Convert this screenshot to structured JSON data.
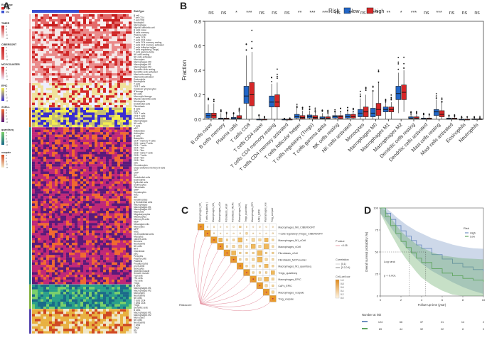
{
  "panels": {
    "A": "A",
    "B": "B",
    "C": "C",
    "D": "D"
  },
  "heatmap": {
    "annotation_title": "RiskType",
    "annotation_levels": [
      "high",
      "low"
    ],
    "blocks": [
      {
        "name": "TIMER",
        "color": "#f6d2d2",
        "rows": [
          "B cell",
          "T cell CD4",
          "T cell CD8",
          "Neutrophil",
          "Macrophage",
          "Myeloid dendritic cell"
        ]
      },
      {
        "name": "CIBERSORT",
        "color": "#f3b3b3",
        "rows": [
          "B cells naive",
          "B cells memory",
          "Plasma cells",
          "T cells CD8",
          "T cells CD4 naive",
          "T cells CD4 memory resting",
          "T cells CD4 memory activated",
          "T cells follicular helper",
          "T cells regulatory (Tregs)",
          "T cells gamma delta",
          "NK cells resting",
          "NK cells activated",
          "Monocytes",
          "Macrophages M0",
          "Macrophages M1",
          "Macrophages M2",
          "Dendritic cells resting",
          "Dendritic cells activated",
          "Mast cells resting",
          "Mast cells activated",
          "Eosinophils",
          "Neutrophils"
        ]
      },
      {
        "name": "MCPCOUNTER",
        "color": "#d97a7a",
        "rows": [
          "T cells",
          "CD8 T cells",
          "Cytotoxic lymphocytes",
          "B lineage",
          "NK cells",
          "Monocytic lineage",
          "Myeloid dendritic cells",
          "Neutrophils",
          "Endothelial cells",
          "Fibroblasts"
        ]
      },
      {
        "name": "EPIC",
        "color": "#c06a2a",
        "rows": [
          "B cells",
          "CAFs",
          "CD4 T cells",
          "CD8 T cells",
          "Endothelial",
          "Macrophages",
          "NK cells",
          "T cells"
        ]
      },
      {
        "name": "XCELL",
        "color": "#2a8a8a",
        "rows": [
          "aDC",
          "Adipocytes",
          "Astrocytes",
          "B-cells",
          "Basophils",
          "CD4+ memory T-cells",
          "CD4+ naive T-cells",
          "CD4+ T-cells",
          "CD4+ Tcm",
          "CD4+ Tem",
          "CD8+ naive T-cells",
          "CD8+ T-cells",
          "CD8+ Tcm",
          "CD8+ Tem",
          "cDC",
          "Chondrocytes",
          "Class-switched memory B-cells",
          "CLP",
          "CMP",
          "DC",
          "Endothelial cells",
          "Eosinophils",
          "Epithelial cells",
          "Erythrocytes",
          "Fibroblasts",
          "GMP",
          "Hepatocytes",
          "HSC",
          "iDC",
          "Keratinocytes",
          "ly Endothelial cells",
          "Macrophages",
          "Macrophages M1",
          "Macrophages M2",
          "Mast cells",
          "Megakaryocytes",
          "Melanocytes",
          "Memory B-cells",
          "MEP",
          "Mesangial cells",
          "Monocytes",
          "MPP",
          "MSC",
          "mv Endothelial cells",
          "Myocytes",
          "naive B-cells",
          "Neurons",
          "Neutrophils",
          "NK cells",
          "NKT",
          "Osteoblast",
          "pDC",
          "Pericytes",
          "Plasma cells",
          "Platelets",
          "Preadipocytes",
          "pro B-cells",
          "Sebocytes",
          "Skeletal muscle",
          "Smooth muscle",
          "Tgd cells",
          "Th1 cells",
          "Th2 cells",
          "Tregs"
        ]
      },
      {
        "name": "quantiseq",
        "color": "#8ab54a",
        "rows": [
          "B cells",
          "Macrophages M1",
          "Macrophages M2",
          "Monocytes",
          "Neutrophils",
          "NK cells",
          "T cells CD4",
          "T cells CD8",
          "Tregs",
          "Dendritic cells"
        ]
      },
      {
        "name": "xcepaie",
        "color": "#5a4ab0",
        "rows": [
          "B cells",
          "Macrophages M1",
          "Macrophages M2",
          "Monocytes",
          "NK cells",
          "Neutrophils",
          "T cells",
          "Tregs",
          "DC",
          "Tfh"
        ]
      }
    ],
    "legends": [
      {
        "title": "RiskType",
        "items": [
          "high",
          "low"
        ]
      },
      {
        "title": "TIMER"
      },
      {
        "title": "CIBERSORT"
      },
      {
        "title": "MCPCOUNTER"
      },
      {
        "title": "EPIC"
      },
      {
        "title": "XCELL"
      },
      {
        "title": "quantiseq"
      },
      {
        "title": "xcepaie"
      }
    ],
    "scale_ticks": [
      "4",
      "2",
      "0",
      "-2",
      "-4"
    ]
  },
  "chart_data": [
    {
      "type": "box",
      "title": "",
      "ylabel": "Fraction",
      "ylim": [
        0,
        0.8
      ],
      "yticks": [
        "0.0",
        "0.2",
        "0.4",
        "0.6",
        "0.8"
      ],
      "legend_title": "Risk",
      "legend": [
        {
          "name": "low",
          "color": "#2166c8"
        },
        {
          "name": "high",
          "color": "#d62728"
        }
      ],
      "categories": [
        "B cells naive",
        "B cells memory",
        "Plasma cells",
        "T cells CD8",
        "T cells CD4 naive",
        "T cells CD4 memory resting",
        "T cells CD4 memory activated",
        "T cells follicular helper",
        "T cells regulatory (Tregs)",
        "T cells gamma delta",
        "NK cells resting",
        "NK cells activated",
        "Monocytes",
        "Macrophages M0",
        "Macrophages M1",
        "Macrophages M2",
        "Dendritic cells resting",
        "Dendritic cells activated",
        "Mast cells resting",
        "Mast cells activated",
        "Eosinophils",
        "Neutrophils"
      ],
      "significance": [
        "ns",
        "ns",
        "*",
        "***",
        "ns",
        "ns",
        "ns",
        "**",
        "***",
        "***",
        "ns",
        "**",
        "ns",
        "***",
        "**",
        "*",
        "***",
        "ns",
        "***",
        "ns",
        "ns",
        "ns"
      ],
      "series": [
        {
          "name": "low",
          "color": "#2166c8",
          "min": [
            0,
            0,
            0,
            0,
            0,
            0,
            0,
            0,
            0,
            0,
            0,
            0,
            0,
            0,
            0,
            0.05,
            0,
            0,
            0,
            0,
            0,
            0
          ],
          "q1": [
            0.01,
            0,
            0,
            0.13,
            0,
            0.1,
            0,
            0.01,
            0.01,
            0.005,
            0.01,
            0.01,
            0.02,
            0.02,
            0.06,
            0.16,
            0.005,
            0,
            0.03,
            0,
            0,
            0
          ],
          "median": [
            0.03,
            0.005,
            0.005,
            0.19,
            0,
            0.14,
            0,
            0.02,
            0.02,
            0.01,
            0.02,
            0.02,
            0.05,
            0.05,
            0.08,
            0.21,
            0.01,
            0.005,
            0.06,
            0.005,
            0,
            0
          ],
          "q3": [
            0.05,
            0.01,
            0.015,
            0.27,
            0,
            0.19,
            0,
            0.04,
            0.035,
            0.02,
            0.03,
            0.04,
            0.08,
            0.09,
            0.1,
            0.27,
            0.02,
            0.01,
            0.08,
            0.01,
            0,
            0.003
          ],
          "max": [
            0.12,
            0.05,
            0.04,
            0.52,
            0.02,
            0.29,
            0,
            0.09,
            0.07,
            0.05,
            0.06,
            0.07,
            0.17,
            0.23,
            0.14,
            0.38,
            0.04,
            0.03,
            0.16,
            0.02,
            0.01,
            0.01
          ]
        },
        {
          "name": "high",
          "color": "#d62728",
          "min": [
            0,
            0,
            0,
            0,
            0,
            0,
            0,
            0,
            0,
            0,
            0,
            0,
            0,
            0,
            0,
            0.06,
            0,
            0,
            0,
            0,
            0,
            0
          ],
          "q1": [
            0.01,
            0,
            0.005,
            0.11,
            0,
            0.1,
            0,
            0.005,
            0.005,
            0.005,
            0.005,
            0.01,
            0.02,
            0.03,
            0.06,
            0.16,
            0.005,
            0,
            0.02,
            0,
            0,
            0
          ],
          "median": [
            0.03,
            0.005,
            0.01,
            0.2,
            0,
            0.14,
            0,
            0.015,
            0.015,
            0.01,
            0.02,
            0.02,
            0.06,
            0.08,
            0.08,
            0.22,
            0.01,
            0.005,
            0.04,
            0.005,
            0,
            0
          ],
          "q3": [
            0.05,
            0.01,
            0.03,
            0.3,
            0,
            0.2,
            0,
            0.03,
            0.03,
            0.02,
            0.03,
            0.04,
            0.1,
            0.13,
            0.1,
            0.28,
            0.02,
            0.01,
            0.07,
            0.01,
            0,
            0.003
          ],
          "max": [
            0.13,
            0.04,
            0.06,
            0.55,
            0.01,
            0.3,
            0,
            0.07,
            0.06,
            0.05,
            0.06,
            0.06,
            0.2,
            0.3,
            0.14,
            0.4,
            0.04,
            0.03,
            0.14,
            0.02,
            0.01,
            0.01
          ]
        }
      ]
    },
    {
      "type": "heatmap",
      "title": "",
      "columns": [
        "Macrophages_M0_CIBERSORT",
        "T cells regulatory (Tregs)_CIBERSORT",
        "Macrophages_M1_xCell",
        "Macrophages_xCell",
        "Fibroblasts_xCell",
        "Fibroblasts_MCPcounter",
        "Macrophages_M1_quantiseq",
        "Tregs_quantiseq",
        "Macrophages_EPIC",
        "CAFs_EPIC",
        "Macrophages_xcepaie",
        "Treg_xcepaie"
      ],
      "rows": [
        "Macrophages_M0_CIBERSORT",
        "T cells regulatory (Tregs)_CIBERSORT",
        "Macrophages_M1_xCell",
        "Macrophages_xCell",
        "Fibroblasts_xCell",
        "Fibroblasts_MCPcounter",
        "Macrophages_M1_quantiseq",
        "Tregs_quantiseq",
        "Macrophages_EPIC",
        "CAFs_EPIC",
        "Macrophages_xcepaie",
        "Treg_xcepaie"
      ],
      "values": [
        [
          1,
          0.1,
          0.2,
          0.1,
          0.05,
          0.1,
          0.3,
          0.1,
          0.1,
          0.2,
          0.1,
          0.1
        ],
        [
          0,
          1,
          0.2,
          0.1,
          0.1,
          0.1,
          0.2,
          0.3,
          0.1,
          0.1,
          0.1,
          0.2
        ],
        [
          0,
          0,
          1,
          0.6,
          0.3,
          0.3,
          0.7,
          0.2,
          0.5,
          0.4,
          0.6,
          0.3
        ],
        [
          0,
          0,
          0,
          1,
          0.3,
          0.4,
          0.5,
          0.3,
          0.7,
          0.4,
          0.8,
          0.3
        ],
        [
          0,
          0,
          0,
          0,
          1,
          0.7,
          0.3,
          0.3,
          0.3,
          0.8,
          0.3,
          0.3
        ],
        [
          0,
          0,
          0,
          0,
          0,
          1,
          0.3,
          0.3,
          0.4,
          0.8,
          0.4,
          0.3
        ],
        [
          0,
          0,
          0,
          0,
          0,
          0,
          1,
          0.3,
          0.4,
          0.3,
          0.6,
          0.3
        ],
        [
          0,
          0,
          0,
          0,
          0,
          0,
          0,
          1,
          0.3,
          0.3,
          0.3,
          0.6
        ],
        [
          0,
          0,
          0,
          0,
          0,
          0,
          0,
          0,
          1,
          0.5,
          0.7,
          0.4
        ],
        [
          0,
          0,
          0,
          0,
          0,
          0,
          0,
          0,
          0,
          1,
          0.4,
          0.3
        ],
        [
          0,
          0,
          0,
          0,
          0,
          0,
          0,
          0,
          0,
          0,
          1,
          0.4
        ],
        [
          0,
          0,
          0,
          0,
          0,
          0,
          0,
          0,
          0,
          0,
          0,
          1
        ]
      ],
      "mantel_label": "Riskscore",
      "legend_p_title": "P value",
      "legend_p_items": [
        "<0.05"
      ],
      "legend_corr_title": "Correlation",
      "legend_corr_items": [
        "[0,1)",
        "[0.2,0.4)"
      ],
      "legend_fill_title": "Cell–cell cor",
      "legend_fill_ticks": [
        "1.0",
        "0.8",
        "0.6",
        "0.4",
        "0.2",
        "0.0"
      ]
    },
    {
      "type": "line",
      "title": "",
      "xlabel": "Follow-up time (year)",
      "ylabel": "Overall survival probability (%)",
      "xlim": [
        0,
        10
      ],
      "ylim": [
        0,
        100
      ],
      "yticks": [
        "0",
        "25",
        "50",
        "75",
        "100"
      ],
      "xticks": [
        "0",
        "2",
        "4",
        "6",
        "8",
        "10"
      ],
      "legend_title": "Risk",
      "pvalue_label": "p < 0.001",
      "logrank_label": "Log rank",
      "series": [
        {
          "name": "High",
          "color": "#6f8fc0",
          "x": [
            0,
            0.5,
            1,
            1.5,
            2,
            2.5,
            3,
            3.5,
            4,
            5,
            6,
            7,
            8,
            9,
            10
          ],
          "y": [
            100,
            94,
            87,
            80,
            74,
            68,
            63,
            58,
            54,
            47,
            42,
            37,
            33,
            30,
            28
          ]
        },
        {
          "name": "Low",
          "color": "#5fa55f",
          "x": [
            0,
            0.5,
            1,
            1.5,
            2,
            2.5,
            3,
            3.5,
            4,
            5,
            6,
            7,
            8,
            9,
            10
          ],
          "y": [
            100,
            90,
            80,
            71,
            62,
            55,
            49,
            43,
            38,
            31,
            26,
            23,
            20,
            18,
            16
          ]
        }
      ],
      "risk_table": {
        "title": "Number at risk",
        "rows": [
          {
            "name": "High",
            "values": [
              "124",
              "66",
              "37",
              "21",
              "14",
              "2"
            ]
          },
          {
            "name": "Low",
            "values": [
              "89",
              "44",
              "32",
              "22",
              "8",
              "0"
            ]
          }
        ]
      }
    }
  ]
}
